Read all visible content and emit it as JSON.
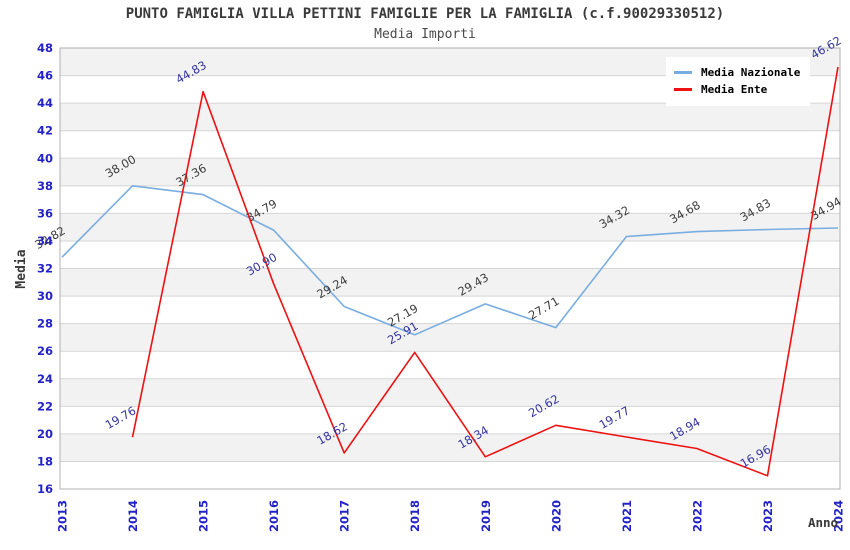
{
  "header": {
    "title": "PUNTO FAMIGLIA VILLA PETTINI FAMIGLIE PER LA FAMIGLIA (c.f.90029330512)",
    "subtitle": "Media Importi"
  },
  "chart_data": {
    "type": "line",
    "title": "PUNTO FAMIGLIA VILLA PETTINI FAMIGLIE PER LA FAMIGLIA (c.f.90029330512)",
    "subtitle": "Media Importi",
    "xlabel": "Anno",
    "ylabel": "Media",
    "x": [
      "2013",
      "2014",
      "2015",
      "2016",
      "2017",
      "2018",
      "2019",
      "2020",
      "2021",
      "2022",
      "2023",
      "2024"
    ],
    "ylim": [
      16,
      48
    ],
    "ytick_step": 2,
    "grid": true,
    "legend_position": "top-right",
    "colors": {
      "tick_label": "#2222C8",
      "band_gray": "#f2f2f2",
      "band_white": "#ffffff",
      "grid_line": "#d6d6d6",
      "plot_border": "#b0b0b0",
      "axis_title": "#3a3a3a"
    },
    "series": [
      {
        "name": "Media Nazionale",
        "color": "#79ADE0",
        "label_color": "#3C3C3C",
        "values": [
          32.82,
          38.0,
          37.36,
          34.79,
          29.24,
          27.19,
          29.43,
          27.71,
          34.32,
          34.68,
          34.83,
          34.94
        ],
        "labels": [
          "32.82",
          "38.00",
          "37.36",
          "34.79",
          "29.24",
          "27.19",
          "29.43",
          "27.71",
          "34.32",
          "34.68",
          "34.83",
          "34.94"
        ]
      },
      {
        "name": "Media Ente",
        "color": "#EE1111",
        "label_color": "#3333A0",
        "values": [
          null,
          19.76,
          44.83,
          30.9,
          18.62,
          25.91,
          18.34,
          20.62,
          19.77,
          18.94,
          16.96,
          46.62
        ],
        "labels": [
          null,
          "19.76",
          "44.83",
          "30.90",
          "18.62",
          "25.91",
          "18.34",
          "20.62",
          "19.77",
          "18.94",
          "16.96",
          "46.62"
        ]
      }
    ]
  }
}
